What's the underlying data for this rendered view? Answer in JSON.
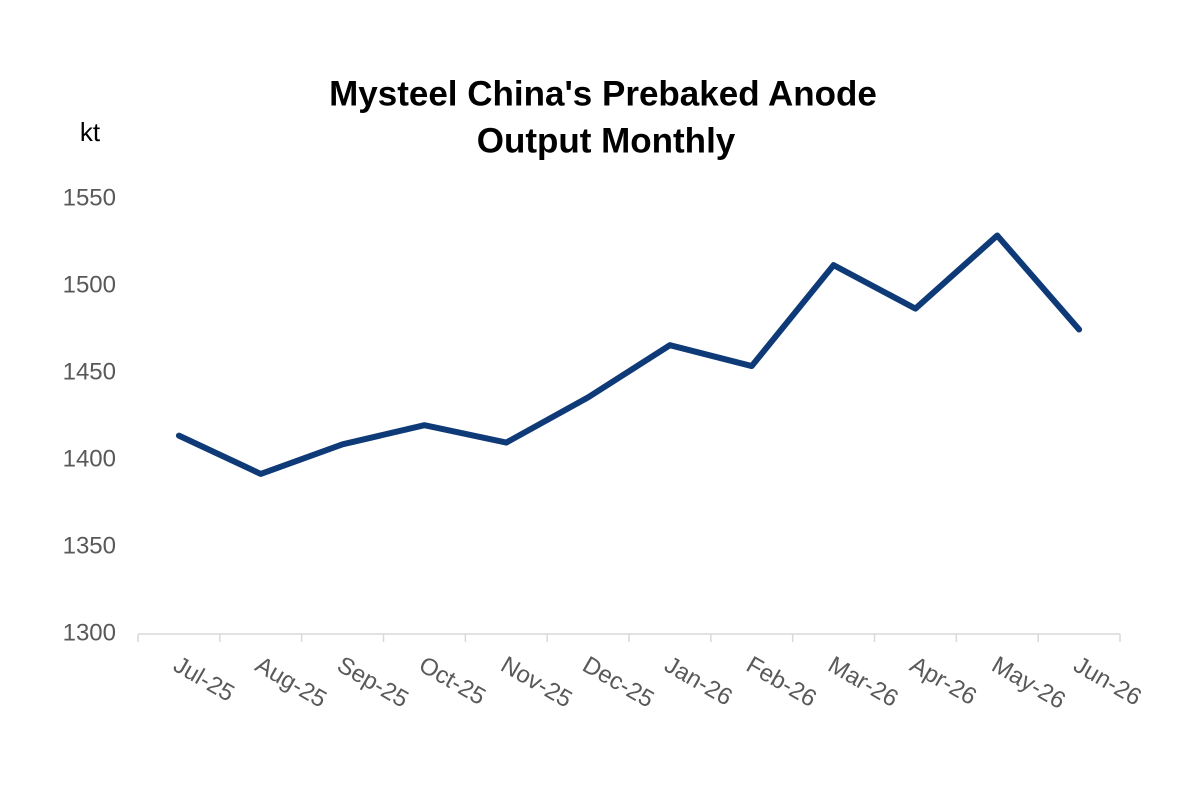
{
  "chart_data": {
    "type": "line",
    "title": [
      "Mysteel China's Prebaked Anode",
      "Output Monthly"
    ],
    "y_label": "kt",
    "categories": [
      "Jul-25",
      "Aug-25",
      "Sep-25",
      "Oct-25",
      "Nov-25",
      "Dec-25",
      "Jan-26",
      "Feb-26",
      "Mar-26",
      "Apr-26",
      "May-26",
      "Jun-26"
    ],
    "series": [
      {
        "name": "Output",
        "color": "#0e3a78",
        "values": [
          1414,
          1392,
          1409,
          1420,
          1410,
          1436,
          1466,
          1454,
          1512,
          1487,
          1529,
          1475
        ]
      }
    ],
    "ylim": [
      1300,
      1550
    ],
    "yticks": [
      1300,
      1350,
      1400,
      1450,
      1500,
      1550
    ],
    "grid": false,
    "legend": false
  }
}
